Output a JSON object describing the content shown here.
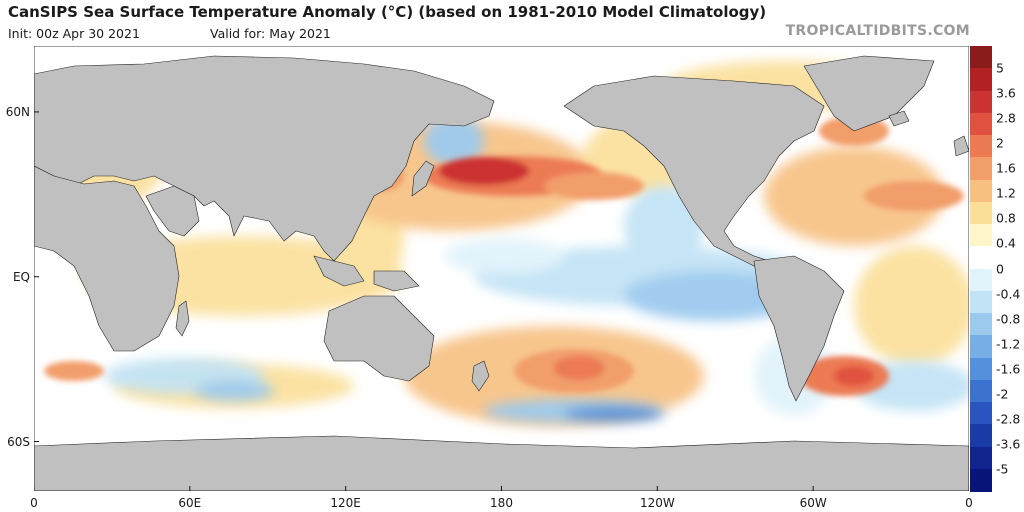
{
  "header": {
    "title": "CanSIPS Sea Surface Temperature Anomaly (°C) (based on 1981-2010 Model Climatology)",
    "init": "Init: 00z Apr 30 2021",
    "valid": "Valid for: May 2021",
    "brand": "TROPICALTIDBITS.COM"
  },
  "map": {
    "lat_labels": [
      {
        "label": "60N",
        "lat": 60
      },
      {
        "label": "EQ",
        "lat": 0
      },
      {
        "label": "60S",
        "lat": -60
      }
    ],
    "lon_labels": [
      {
        "label": "0",
        "lon": 0
      },
      {
        "label": "60E",
        "lon": 60
      },
      {
        "label": "120E",
        "lon": 120
      },
      {
        "label": "180",
        "lon": 180
      },
      {
        "label": "120W",
        "lon": 240
      },
      {
        "label": "60W",
        "lon": 300
      },
      {
        "label": "0",
        "lon": 360
      }
    ],
    "land_color": "#c0c0c0",
    "ocean_neutral": "#ffffff",
    "features": [
      {
        "name": "north-pacific-warm",
        "anomaly": 2.4
      },
      {
        "name": "equatorial-pacific-cool",
        "anomaly": -0.6
      },
      {
        "name": "south-pacific-warm",
        "anomaly": 1.2
      },
      {
        "name": "north-atlantic-warm",
        "anomaly": 1.4
      },
      {
        "name": "south-atlantic-warm",
        "anomaly": 2.0
      },
      {
        "name": "southern-ocean-cool",
        "anomaly": -1.6
      }
    ]
  },
  "colorbar": {
    "labels": [
      "5",
      "3.6",
      "2.8",
      "2",
      "1.6",
      "1.2",
      "0.8",
      "0.4",
      "0",
      "-0.4",
      "-0.8",
      "-1.2",
      "-1.6",
      "-2",
      "-2.8",
      "-3.6",
      "-5"
    ],
    "colors": [
      "#8b1a1a",
      "#b22222",
      "#cc3333",
      "#e0523f",
      "#ec7a52",
      "#f29e6b",
      "#f7c081",
      "#fbdf99",
      "#fef5c8",
      "#ffffff",
      "#e1f3fb",
      "#c2e3f5",
      "#9ccaef",
      "#77aee6",
      "#5590dc",
      "#3c72d0",
      "#2a54bf",
      "#1a3aa8",
      "#10238f",
      "#081478"
    ]
  }
}
